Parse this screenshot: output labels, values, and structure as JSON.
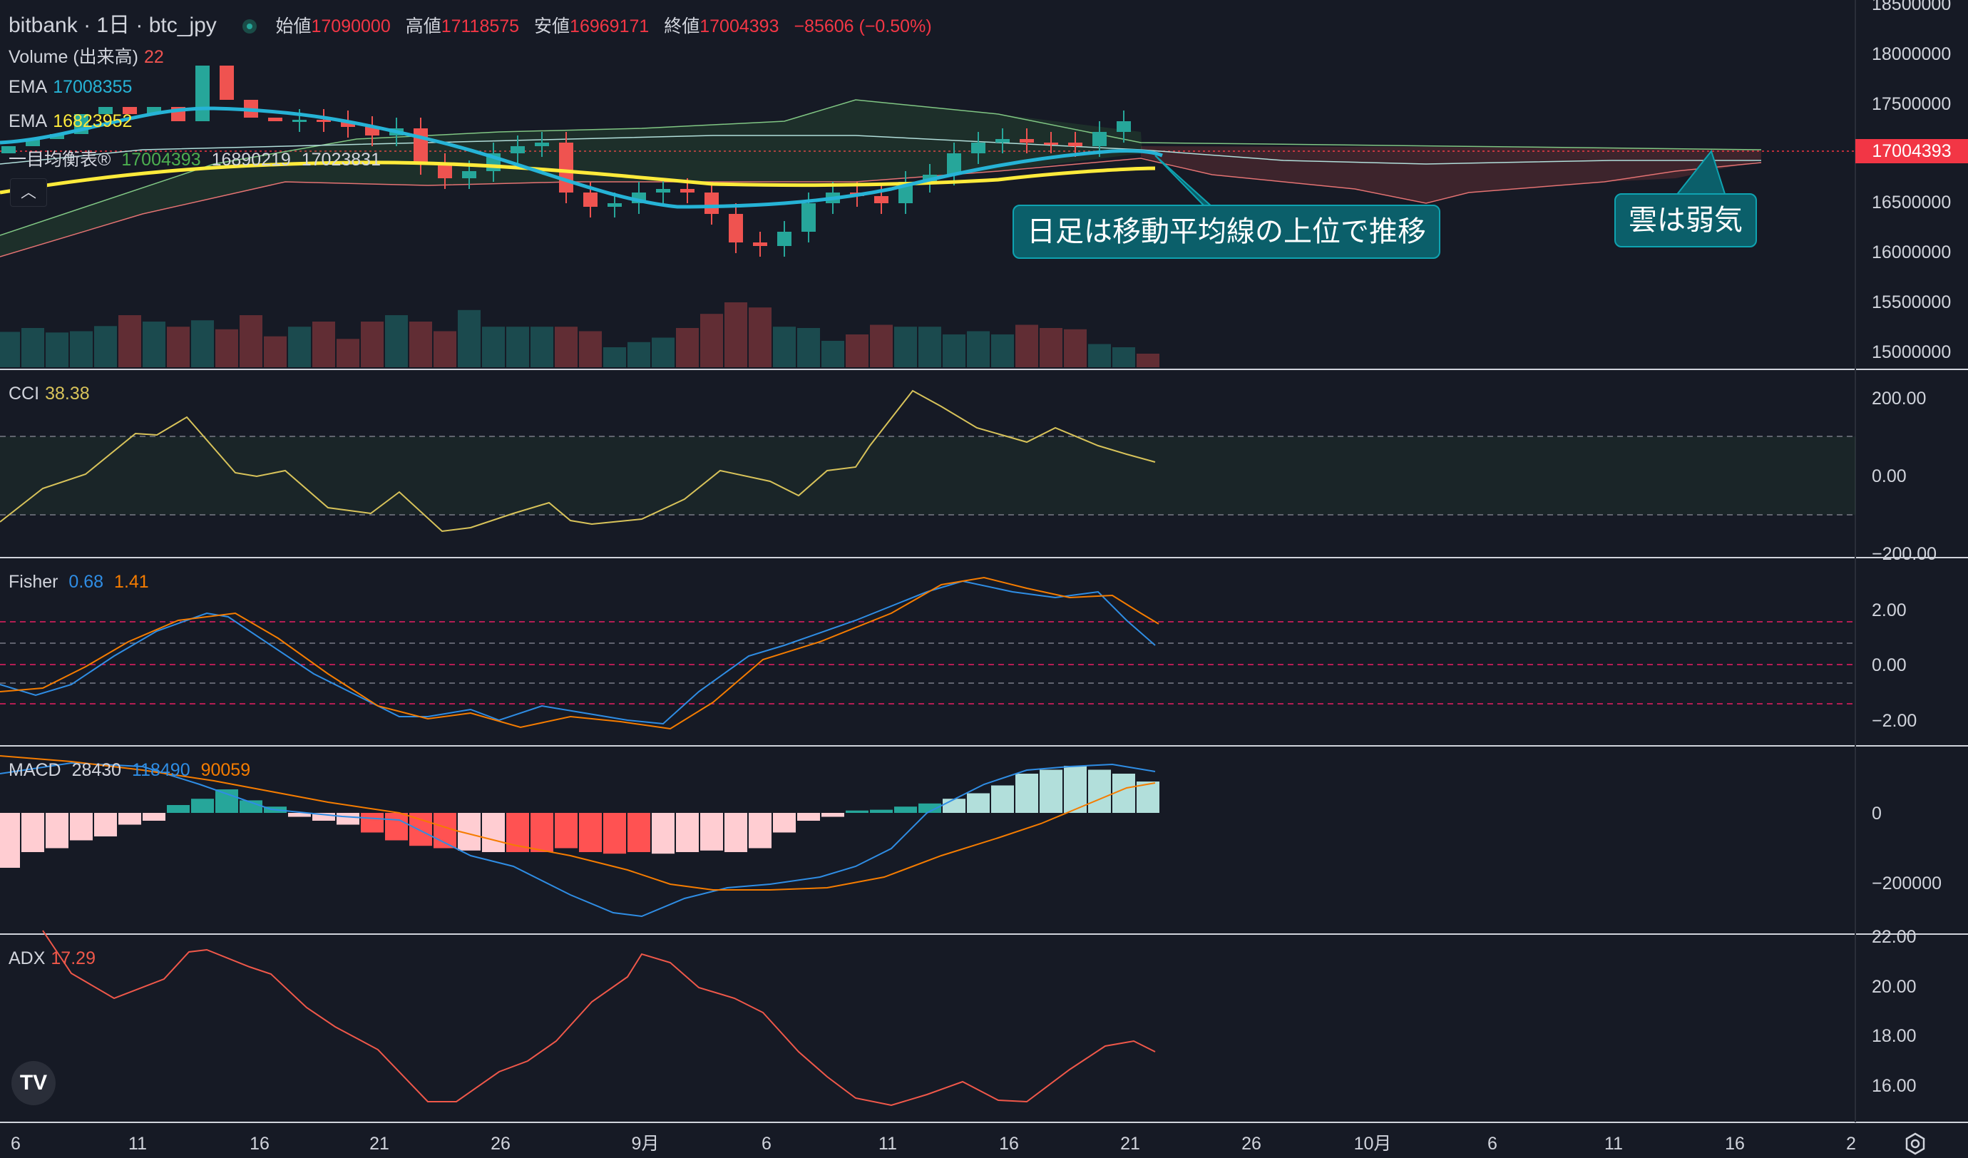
{
  "header": {
    "symbol": "bitbank · 1日 · btc_jpy",
    "open_label": "始値",
    "open": "17090000",
    "high_label": "高値",
    "high": "17118575",
    "low_label": "安値",
    "low": "16969171",
    "close_label": "終値",
    "close": "17004393",
    "change": "−85606 (−0.50%)"
  },
  "legends": {
    "volume": {
      "name": "Volume (出来高)",
      "value": "22"
    },
    "ema1": {
      "name": "EMA",
      "value": "17008355"
    },
    "ema2": {
      "name": "EMA",
      "value": "16823952"
    },
    "ichimoku": {
      "name": "一目均衡表®",
      "v1": "17004393",
      "v2": "16890219",
      "v3": "17023831"
    },
    "cci": {
      "name": "CCI",
      "value": "38.38"
    },
    "fisher": {
      "name": "Fisher",
      "v1": "0.68",
      "v2": "1.41"
    },
    "macd": {
      "name": "MACD",
      "v1": "28430",
      "v2": "118490",
      "v3": "90059"
    },
    "adx": {
      "name": "ADX",
      "value": "17.29"
    }
  },
  "last_price_label": "17004393",
  "callouts": {
    "ma": "日足は移動平均線の上位で推移",
    "cloud": "雲は弱気"
  },
  "price_axis": {
    "main": [
      "18500000",
      "18000000",
      "17500000",
      "17000000",
      "16500000",
      "16000000",
      "15500000",
      "15000000"
    ],
    "cci": [
      "200.00",
      "0.00",
      "−200.00"
    ],
    "fisher": [
      "2.00",
      "0.00",
      "−2.00"
    ],
    "macd": [
      "0",
      "−200000"
    ],
    "adx": [
      "22.00",
      "20.00",
      "18.00",
      "16.00"
    ]
  },
  "time_axis": [
    "6",
    "11",
    "16",
    "21",
    "26",
    "9月",
    "6",
    "11",
    "16",
    "21",
    "26",
    "10月",
    "6",
    "11",
    "16",
    "2"
  ],
  "colors": {
    "bg": "#161a25",
    "up": "#26a69a",
    "down": "#ef5350",
    "ema_fast": "#26b3d6",
    "ema_slow": "#ffeb3b",
    "cci": "#d8c35a",
    "fisher1": "#2f8de4",
    "fisher2": "#f57c00",
    "adx": "#f0584a",
    "callout": "#0b5f6a"
  },
  "icons": {
    "logo": "tradingview-logo-icon",
    "settings": "settings-gear-icon",
    "collapse": "chevron-up-icon"
  }
}
